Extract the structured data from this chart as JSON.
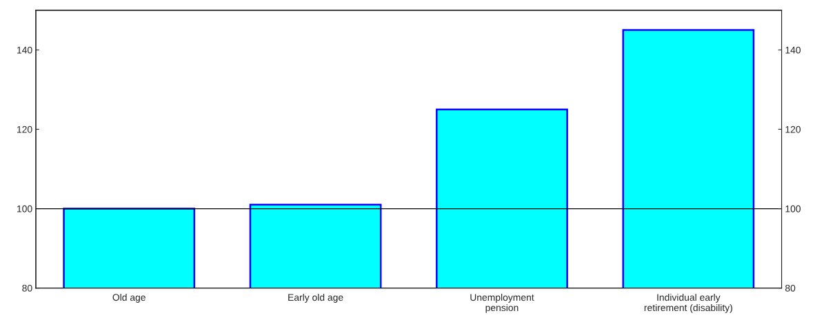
{
  "chart_data": {
    "type": "bar",
    "categories": [
      "Old age",
      "Early old age",
      "Unemployment\npension",
      "Individual early\nretirement (disability)"
    ],
    "values": [
      100,
      101,
      125,
      145
    ],
    "color": "#00ffff",
    "ylim": [
      80,
      150
    ],
    "yticks": [
      80,
      100,
      120,
      140
    ],
    "y2lim": [
      80,
      150
    ],
    "y2ticks": [
      80,
      100,
      120,
      140
    ],
    "ref_lines": [
      {
        "axis": "y",
        "value": 100,
        "color": "#000000"
      }
    ],
    "grid": false
  }
}
